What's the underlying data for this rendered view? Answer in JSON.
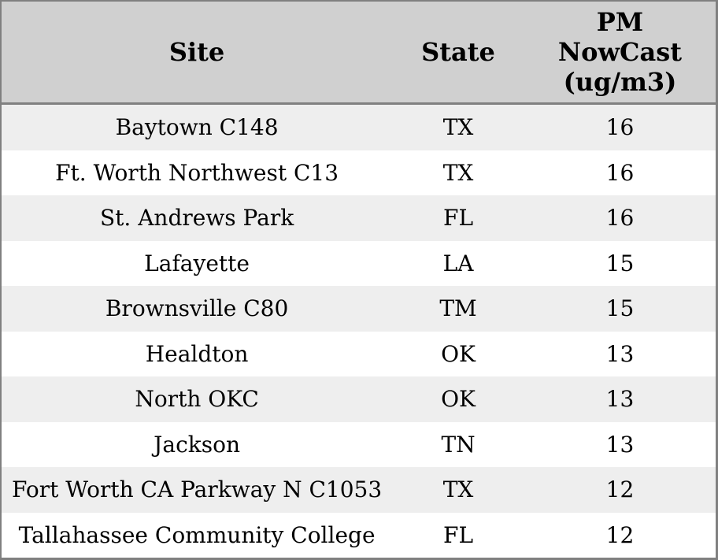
{
  "colors": {
    "header_bg": "#d0d0d0",
    "row_alt_bg": "#eeeeee",
    "row_bg": "#ffffff",
    "border": "#808080",
    "text": "#000000"
  },
  "table": {
    "headers": {
      "site": "Site",
      "state": "State",
      "pm": "PM\nNowCast\n(ug/m3)"
    },
    "rows": [
      {
        "site": "Baytown C148",
        "state": "TX",
        "pm": "16"
      },
      {
        "site": "Ft. Worth Northwest C13",
        "state": "TX",
        "pm": "16"
      },
      {
        "site": "St. Andrews Park",
        "state": "FL",
        "pm": "16"
      },
      {
        "site": "Lafayette",
        "state": "LA",
        "pm": "15"
      },
      {
        "site": "Brownsville C80",
        "state": "TM",
        "pm": "15"
      },
      {
        "site": "Healdton",
        "state": "OK",
        "pm": "13"
      },
      {
        "site": "North OKC",
        "state": "OK",
        "pm": "13"
      },
      {
        "site": "Jackson",
        "state": "TN",
        "pm": "13"
      },
      {
        "site": "Fort Worth CA Parkway N C1053",
        "state": "TX",
        "pm": "12"
      },
      {
        "site": "Tallahassee Community College",
        "state": "FL",
        "pm": "12"
      }
    ]
  },
  "chart_data": {
    "type": "table",
    "title": "",
    "columns": [
      "Site",
      "State",
      "PM NowCast (ug/m3)"
    ],
    "rows": [
      [
        "Baytown C148",
        "TX",
        16
      ],
      [
        "Ft. Worth Northwest C13",
        "TX",
        16
      ],
      [
        "St. Andrews Park",
        "FL",
        16
      ],
      [
        "Lafayette",
        "LA",
        15
      ],
      [
        "Brownsville C80",
        "TM",
        15
      ],
      [
        "Healdton",
        "OK",
        13
      ],
      [
        "North OKC",
        "OK",
        13
      ],
      [
        "Jackson",
        "TN",
        13
      ],
      [
        "Fort Worth CA Parkway N C1053",
        "TX",
        12
      ],
      [
        "Tallahassee Community College",
        "FL",
        12
      ]
    ]
  }
}
